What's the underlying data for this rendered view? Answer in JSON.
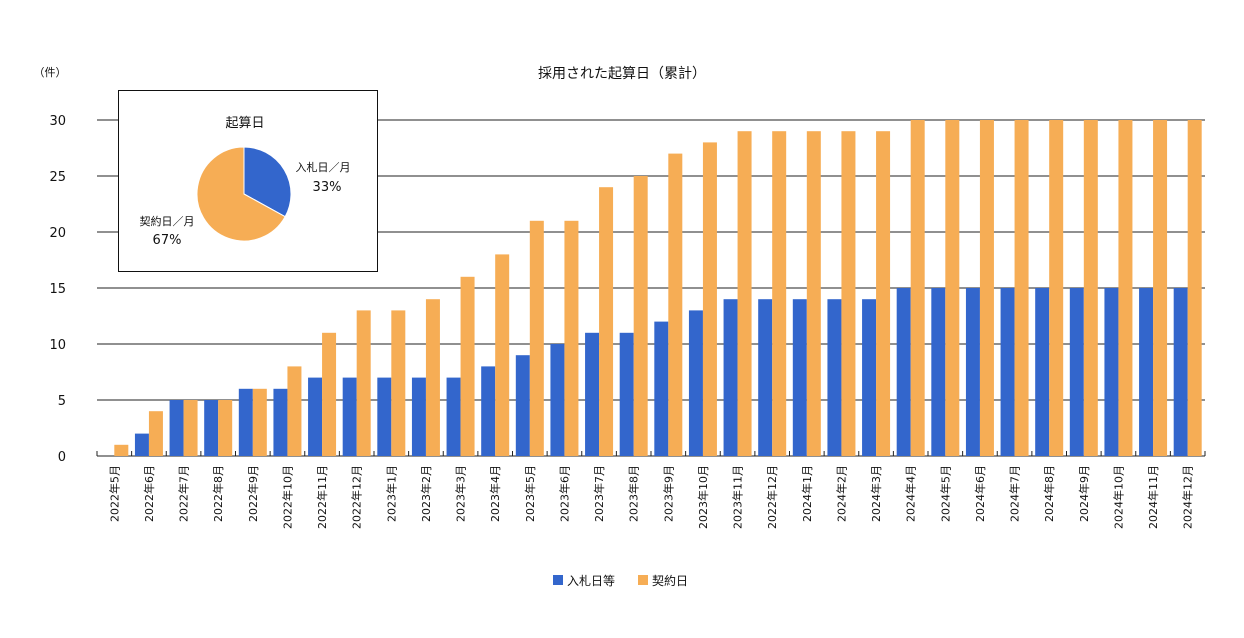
{
  "chart_data": [
    {
      "type": "bar",
      "title": "採用された起算日（累計）",
      "ylabel": "（件）",
      "xlabel": "",
      "ylim": [
        0,
        30
      ],
      "yticks": [
        0,
        5,
        10,
        15,
        20,
        25,
        30
      ],
      "grid": true,
      "legend_position": "bottom",
      "categories": [
        "2022年5月",
        "2022年6月",
        "2022年7月",
        "2022年8月",
        "2022年9月",
        "2022年10月",
        "2022年11月",
        "2022年12月",
        "2023年1月",
        "2023年2月",
        "2023年3月",
        "2023年4月",
        "2023年5月",
        "2023年6月",
        "2023年7月",
        "2023年8月",
        "2023年9月",
        "2023年10月",
        "2023年11月",
        "2022年12月",
        "2024年1月",
        "2024年2月",
        "2024年3月",
        "2024年4月",
        "2024年5月",
        "2024年6月",
        "2024年7月",
        "2024年8月",
        "2024年9月",
        "2024年10月",
        "2024年11月",
        "2024年12月"
      ],
      "series": [
        {
          "name": "入札日等",
          "color": "#3366cc",
          "values": [
            0,
            2,
            5,
            5,
            6,
            6,
            7,
            7,
            7,
            7,
            7,
            8,
            9,
            10,
            11,
            11,
            12,
            13,
            14,
            14,
            14,
            14,
            14,
            15,
            15,
            15,
            15,
            15,
            15,
            15,
            15,
            15
          ]
        },
        {
          "name": "契約日",
          "color": "#f6ad55",
          "values": [
            1,
            4,
            5,
            5,
            6,
            8,
            11,
            13,
            13,
            14,
            16,
            18,
            21,
            21,
            24,
            25,
            27,
            28,
            29,
            29,
            29,
            29,
            29,
            30,
            30,
            30,
            30,
            30,
            30,
            30,
            30,
            30
          ]
        }
      ]
    },
    {
      "type": "pie",
      "title": "起算日",
      "slices": [
        {
          "label": "入札日／月",
          "value": 33,
          "display": "33%",
          "color": "#3366cc"
        },
        {
          "label": "契約日／月",
          "value": 67,
          "display": "67%",
          "color": "#f6ad55"
        }
      ]
    }
  ]
}
